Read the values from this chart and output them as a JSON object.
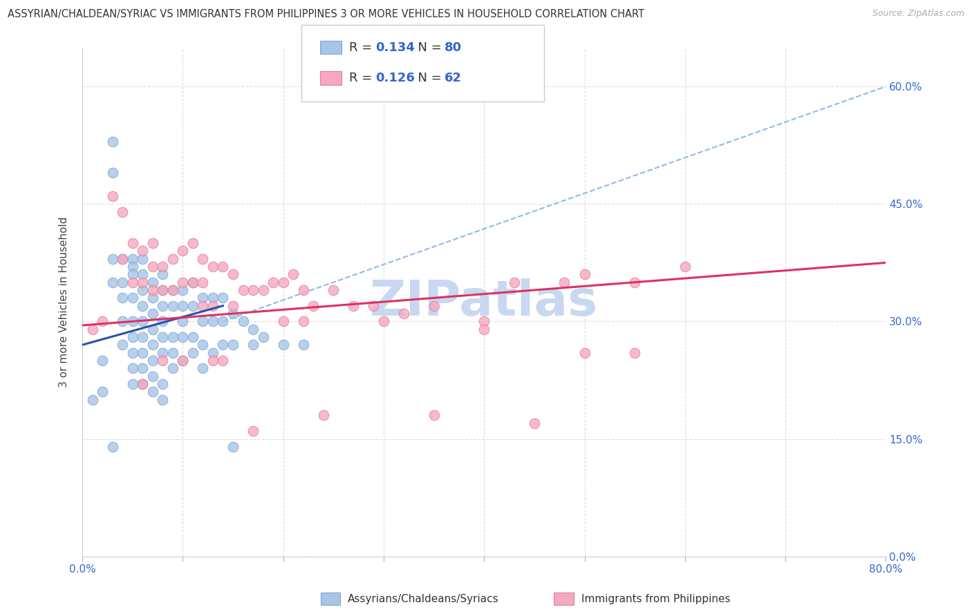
{
  "title": "ASSYRIAN/CHALDEAN/SYRIAC VS IMMIGRANTS FROM PHILIPPINES 3 OR MORE VEHICLES IN HOUSEHOLD CORRELATION CHART",
  "source": "Source: ZipAtlas.com",
  "ylabel": "3 or more Vehicles in Household",
  "xlim": [
    0.0,
    0.8
  ],
  "ylim": [
    0.0,
    0.65
  ],
  "x_tick_positions": [
    0.0,
    0.1,
    0.2,
    0.3,
    0.4,
    0.5,
    0.6,
    0.7,
    0.8
  ],
  "x_tick_labels": [
    "0.0%",
    "",
    "",
    "",
    "",
    "",
    "",
    "",
    "80.0%"
  ],
  "y_tick_positions": [
    0.0,
    0.15,
    0.3,
    0.45,
    0.6
  ],
  "y_tick_labels_right": [
    "0.0%",
    "15.0%",
    "30.0%",
    "45.0%",
    "60.0%"
  ],
  "legend_blue_R": "0.134",
  "legend_blue_N": "80",
  "legend_pink_R": "0.126",
  "legend_pink_N": "62",
  "blue_scatter_x": [
    0.01,
    0.02,
    0.02,
    0.03,
    0.03,
    0.03,
    0.03,
    0.04,
    0.04,
    0.04,
    0.04,
    0.04,
    0.05,
    0.05,
    0.05,
    0.05,
    0.05,
    0.05,
    0.05,
    0.05,
    0.05,
    0.06,
    0.06,
    0.06,
    0.06,
    0.06,
    0.06,
    0.06,
    0.06,
    0.06,
    0.07,
    0.07,
    0.07,
    0.07,
    0.07,
    0.07,
    0.07,
    0.07,
    0.08,
    0.08,
    0.08,
    0.08,
    0.08,
    0.08,
    0.08,
    0.08,
    0.09,
    0.09,
    0.09,
    0.09,
    0.09,
    0.1,
    0.1,
    0.1,
    0.1,
    0.1,
    0.11,
    0.11,
    0.11,
    0.11,
    0.12,
    0.12,
    0.12,
    0.12,
    0.13,
    0.13,
    0.13,
    0.14,
    0.14,
    0.14,
    0.15,
    0.15,
    0.16,
    0.17,
    0.17,
    0.18,
    0.2,
    0.22,
    0.03,
    0.15
  ],
  "blue_scatter_y": [
    0.2,
    0.21,
    0.25,
    0.53,
    0.49,
    0.38,
    0.35,
    0.38,
    0.35,
    0.33,
    0.3,
    0.27,
    0.38,
    0.37,
    0.36,
    0.33,
    0.3,
    0.28,
    0.26,
    0.24,
    0.22,
    0.38,
    0.36,
    0.34,
    0.32,
    0.3,
    0.28,
    0.26,
    0.24,
    0.22,
    0.35,
    0.33,
    0.31,
    0.29,
    0.27,
    0.25,
    0.23,
    0.21,
    0.36,
    0.34,
    0.32,
    0.3,
    0.28,
    0.26,
    0.22,
    0.2,
    0.34,
    0.32,
    0.28,
    0.26,
    0.24,
    0.34,
    0.32,
    0.3,
    0.28,
    0.25,
    0.35,
    0.32,
    0.28,
    0.26,
    0.33,
    0.3,
    0.27,
    0.24,
    0.33,
    0.3,
    0.26,
    0.33,
    0.3,
    0.27,
    0.31,
    0.27,
    0.3,
    0.29,
    0.27,
    0.28,
    0.27,
    0.27,
    0.14,
    0.14
  ],
  "pink_scatter_x": [
    0.01,
    0.02,
    0.03,
    0.04,
    0.04,
    0.05,
    0.05,
    0.06,
    0.06,
    0.07,
    0.07,
    0.07,
    0.08,
    0.08,
    0.09,
    0.09,
    0.1,
    0.1,
    0.11,
    0.11,
    0.12,
    0.12,
    0.12,
    0.13,
    0.13,
    0.14,
    0.15,
    0.15,
    0.16,
    0.17,
    0.18,
    0.19,
    0.2,
    0.21,
    0.22,
    0.23,
    0.25,
    0.27,
    0.29,
    0.32,
    0.35,
    0.4,
    0.43,
    0.5,
    0.5,
    0.55,
    0.6,
    0.13,
    0.22,
    0.3,
    0.4,
    0.48,
    0.2,
    0.08,
    0.1,
    0.06,
    0.14,
    0.17,
    0.24,
    0.35,
    0.45,
    0.55
  ],
  "pink_scatter_y": [
    0.29,
    0.3,
    0.46,
    0.44,
    0.38,
    0.4,
    0.35,
    0.39,
    0.35,
    0.4,
    0.37,
    0.34,
    0.37,
    0.34,
    0.38,
    0.34,
    0.39,
    0.35,
    0.4,
    0.35,
    0.38,
    0.35,
    0.32,
    0.37,
    0.32,
    0.37,
    0.36,
    0.32,
    0.34,
    0.34,
    0.34,
    0.35,
    0.35,
    0.36,
    0.34,
    0.32,
    0.34,
    0.32,
    0.32,
    0.31,
    0.32,
    0.3,
    0.35,
    0.36,
    0.26,
    0.26,
    0.37,
    0.25,
    0.3,
    0.3,
    0.29,
    0.35,
    0.3,
    0.25,
    0.25,
    0.22,
    0.25,
    0.16,
    0.18,
    0.18,
    0.17,
    0.35
  ],
  "blue_color": "#a8c4e8",
  "pink_color": "#f5a8be",
  "blue_scatter_edge": "#7aaad0",
  "pink_scatter_edge": "#e080a0",
  "blue_line_color": "#2850b0",
  "pink_line_color": "#e03060",
  "dashed_line_color": "#90b8e8",
  "watermark_color": "#c8d8f0",
  "background_color": "#ffffff",
  "grid_color": "#dddddd",
  "blue_trend_x0": 0.0,
  "blue_trend_y0": 0.27,
  "blue_trend_x1": 0.14,
  "blue_trend_y1": 0.32,
  "pink_trend_x0": 0.0,
  "pink_trend_y0": 0.295,
  "pink_trend_x1": 0.8,
  "pink_trend_y1": 0.375
}
